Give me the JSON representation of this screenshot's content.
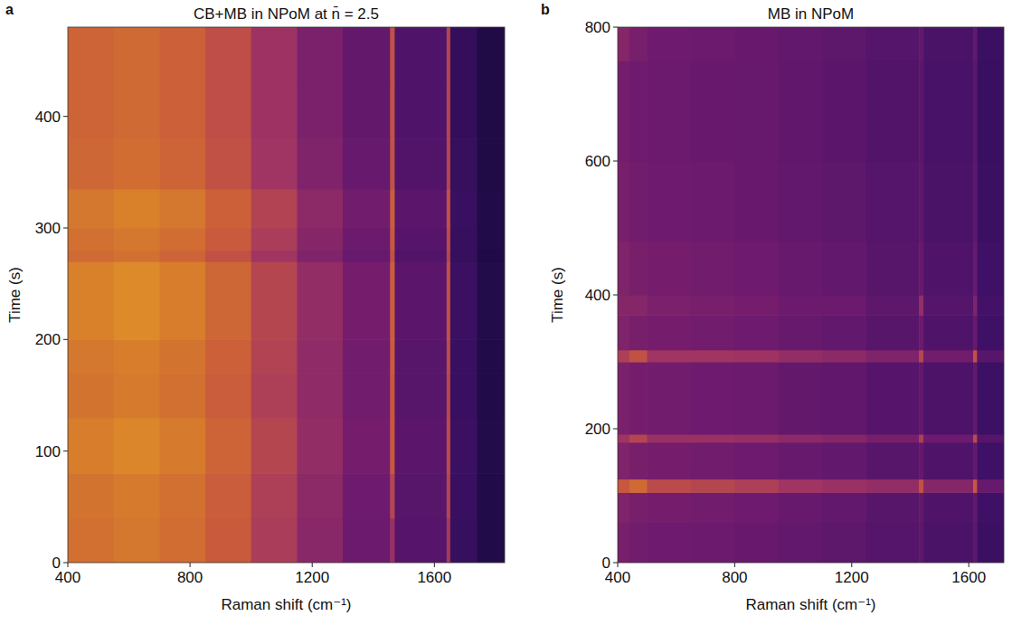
{
  "chart_data": [
    {
      "type": "heatmap",
      "panel_label": "a",
      "title": "CB+MB in NPoM at n̄ = 2.5",
      "x_label": "Raman shift (cm⁻¹)",
      "y_label": "Time (s)",
      "xlim": [
        400,
        1830
      ],
      "ylim": [
        0,
        480
      ],
      "xticks": [
        400,
        800,
        1200,
        1600
      ],
      "yticks": [
        0,
        100,
        200,
        300,
        400
      ],
      "zlim": [
        0,
        1
      ],
      "tick_labels": true,
      "x_edges": [
        400,
        550,
        700,
        850,
        1000,
        1150,
        1300,
        1455,
        1470,
        1640,
        1652,
        1740,
        1830
      ],
      "y_edges": [
        0,
        40,
        80,
        130,
        170,
        200,
        270,
        280,
        300,
        335,
        380,
        430,
        480
      ],
      "values": [
        [
          0.8,
          0.82,
          0.79,
          0.73,
          0.63,
          0.53,
          0.44,
          0.58,
          0.35,
          0.62,
          0.21,
          0.08
        ],
        [
          0.81,
          0.83,
          0.8,
          0.74,
          0.64,
          0.54,
          0.45,
          0.66,
          0.36,
          0.66,
          0.22,
          0.08
        ],
        [
          0.84,
          0.87,
          0.83,
          0.76,
          0.66,
          0.56,
          0.47,
          0.72,
          0.37,
          0.68,
          0.23,
          0.09
        ],
        [
          0.81,
          0.83,
          0.8,
          0.74,
          0.64,
          0.55,
          0.46,
          0.72,
          0.36,
          0.67,
          0.22,
          0.08
        ],
        [
          0.82,
          0.84,
          0.81,
          0.75,
          0.65,
          0.55,
          0.46,
          0.73,
          0.36,
          0.68,
          0.22,
          0.08
        ],
        [
          0.85,
          0.88,
          0.84,
          0.77,
          0.66,
          0.56,
          0.47,
          0.74,
          0.37,
          0.7,
          0.23,
          0.09
        ],
        [
          0.78,
          0.8,
          0.76,
          0.7,
          0.6,
          0.5,
          0.42,
          0.7,
          0.33,
          0.66,
          0.2,
          0.07
        ],
        [
          0.8,
          0.82,
          0.79,
          0.73,
          0.63,
          0.52,
          0.44,
          0.72,
          0.35,
          0.68,
          0.21,
          0.08
        ],
        [
          0.82,
          0.85,
          0.82,
          0.75,
          0.65,
          0.54,
          0.46,
          0.74,
          0.37,
          0.7,
          0.22,
          0.08
        ],
        [
          0.77,
          0.79,
          0.76,
          0.7,
          0.6,
          0.5,
          0.42,
          0.7,
          0.33,
          0.66,
          0.2,
          0.07
        ],
        [
          0.76,
          0.78,
          0.75,
          0.69,
          0.59,
          0.49,
          0.41,
          0.7,
          0.32,
          0.66,
          0.19,
          0.07
        ],
        [
          0.76,
          0.78,
          0.75,
          0.69,
          0.59,
          0.49,
          0.41,
          0.7,
          0.32,
          0.66,
          0.19,
          0.07
        ]
      ]
    },
    {
      "type": "heatmap",
      "panel_label": "b",
      "title": "MB in NPoM",
      "x_label": "Raman shift (cm⁻¹)",
      "y_label": "Time (s)",
      "xlim": [
        400,
        1720
      ],
      "ylim": [
        0,
        800
      ],
      "xticks": [
        400,
        800,
        1200,
        1600
      ],
      "yticks": [
        0,
        200,
        400,
        600,
        800
      ],
      "zlim": [
        0,
        1
      ],
      "tick_labels": true,
      "x_edges": [
        400,
        440,
        500,
        650,
        800,
        950,
        1100,
        1250,
        1430,
        1445,
        1615,
        1628,
        1720
      ],
      "y_edges": [
        0,
        60,
        105,
        125,
        180,
        192,
        300,
        318,
        370,
        400,
        480,
        600,
        750,
        800
      ],
      "values": [
        [
          0.48,
          0.46,
          0.45,
          0.44,
          0.43,
          0.4,
          0.38,
          0.34,
          0.38,
          0.3,
          0.38,
          0.23
        ],
        [
          0.5,
          0.48,
          0.47,
          0.46,
          0.45,
          0.42,
          0.4,
          0.36,
          0.4,
          0.32,
          0.4,
          0.25
        ],
        [
          0.72,
          0.78,
          0.68,
          0.66,
          0.64,
          0.6,
          0.58,
          0.56,
          0.7,
          0.52,
          0.72,
          0.42
        ],
        [
          0.5,
          0.48,
          0.47,
          0.46,
          0.45,
          0.42,
          0.4,
          0.36,
          0.41,
          0.32,
          0.41,
          0.25
        ],
        [
          0.6,
          0.66,
          0.58,
          0.58,
          0.57,
          0.54,
          0.52,
          0.48,
          0.64,
          0.45,
          0.68,
          0.35
        ],
        [
          0.49,
          0.47,
          0.46,
          0.45,
          0.44,
          0.41,
          0.39,
          0.35,
          0.4,
          0.31,
          0.4,
          0.24
        ],
        [
          0.64,
          0.7,
          0.6,
          0.6,
          0.59,
          0.56,
          0.54,
          0.5,
          0.66,
          0.46,
          0.7,
          0.36
        ],
        [
          0.5,
          0.48,
          0.47,
          0.46,
          0.45,
          0.42,
          0.4,
          0.36,
          0.44,
          0.32,
          0.43,
          0.25
        ],
        [
          0.52,
          0.52,
          0.49,
          0.48,
          0.47,
          0.44,
          0.44,
          0.38,
          0.56,
          0.34,
          0.5,
          0.27
        ],
        [
          0.5,
          0.48,
          0.47,
          0.46,
          0.45,
          0.42,
          0.4,
          0.36,
          0.42,
          0.32,
          0.42,
          0.25
        ],
        [
          0.48,
          0.46,
          0.45,
          0.44,
          0.43,
          0.4,
          0.38,
          0.34,
          0.38,
          0.3,
          0.38,
          0.23
        ],
        [
          0.47,
          0.45,
          0.44,
          0.43,
          0.42,
          0.39,
          0.37,
          0.33,
          0.37,
          0.29,
          0.37,
          0.22
        ],
        [
          0.52,
          0.48,
          0.45,
          0.44,
          0.43,
          0.4,
          0.38,
          0.34,
          0.4,
          0.3,
          0.4,
          0.23
        ]
      ]
    }
  ]
}
